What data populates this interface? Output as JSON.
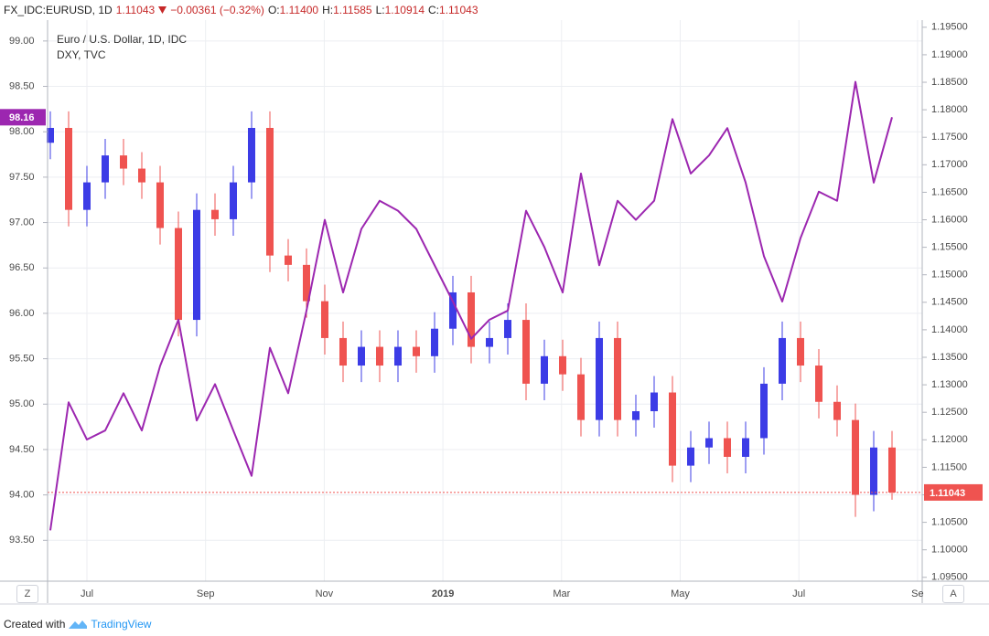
{
  "chart_data": {
    "type": "candlestick",
    "symbol": "FX_IDC:EURUSD, 1D",
    "last": "1.11043",
    "change": "−0.00361 (−0.32%)",
    "quote": [
      {
        "label": "O:",
        "value": "1.11400"
      },
      {
        "label": "H:",
        "value": "1.11585"
      },
      {
        "label": "L:",
        "value": "1.10914"
      },
      {
        "label": "C:",
        "value": "1.11043"
      }
    ],
    "xtick_labels": [
      "Jul",
      "Sep",
      "Nov",
      "2019",
      "Mar",
      "May",
      "Jul",
      "Se"
    ],
    "ylim": [
      93.05,
      99.23
    ],
    "yticks": [
      {
        "value": 93.5,
        "label": "93.50"
      },
      {
        "value": 94,
        "label": "94.00"
      },
      {
        "value": 94.5,
        "label": "94.50"
      },
      {
        "value": 95,
        "label": "95.00"
      },
      {
        "value": 95.5,
        "label": "95.50"
      },
      {
        "value": 96,
        "label": "96.00"
      },
      {
        "value": 96.5,
        "label": "96.50"
      },
      {
        "value": 97,
        "label": "97.00"
      },
      {
        "value": 97.5,
        "label": "97.50"
      },
      {
        "value": 98,
        "label": "98.00"
      },
      {
        "value": 98.5,
        "label": "98.50"
      },
      {
        "value": 99,
        "label": "99.00"
      }
    ],
    "y2lim": [
      1.0943,
      1.1963
    ],
    "y2ticks": [
      {
        "value": 1.095,
        "label": "1.09500"
      },
      {
        "value": 1.1,
        "label": "1.10000"
      },
      {
        "value": 1.105,
        "label": "1.10500"
      },
      {
        "value": 1.11,
        "label": "1.11000"
      },
      {
        "value": 1.115,
        "label": "1.11500"
      },
      {
        "value": 1.12,
        "label": "1.12000"
      },
      {
        "value": 1.125,
        "label": "1.12500"
      },
      {
        "value": 1.13,
        "label": "1.13000"
      },
      {
        "value": 1.135,
        "label": "1.13500"
      },
      {
        "value": 1.14,
        "label": "1.14000"
      },
      {
        "value": 1.145,
        "label": "1.14500"
      },
      {
        "value": 1.15,
        "label": "1.15000"
      },
      {
        "value": 1.155,
        "label": "1.15500"
      },
      {
        "value": 1.16,
        "label": "1.16000"
      },
      {
        "value": 1.165,
        "label": "1.16500"
      },
      {
        "value": 1.17,
        "label": "1.17000"
      },
      {
        "value": 1.175,
        "label": "1.17500"
      },
      {
        "value": 1.18,
        "label": "1.18000"
      },
      {
        "value": 1.185,
        "label": "1.18500"
      },
      {
        "value": 1.19,
        "label": "1.19000"
      },
      {
        "value": 1.195,
        "label": "1.19500"
      }
    ],
    "grid": true,
    "series": [
      {
        "name": "Euro / U.S. Dollar, 1D, IDC",
        "type": "candlestick",
        "axis": "y2",
        "up_color": "#3c3ce6",
        "down_color": "#ef5350",
        "last_label": "1.11043",
        "open": [
          1.174,
          1.1767,
          1.1618,
          1.1668,
          1.1717,
          1.1693,
          1.1668,
          1.1585,
          1.1418,
          1.1618,
          1.1601,
          1.1668,
          1.1767,
          1.1535,
          1.1518,
          1.1452,
          1.1385,
          1.1335,
          1.1369,
          1.1335,
          1.1369,
          1.1352,
          1.1402,
          1.1468,
          1.1369,
          1.1385,
          1.1418,
          1.1302,
          1.1352,
          1.1319,
          1.1236,
          1.1385,
          1.1236,
          1.1252,
          1.1286,
          1.1153,
          1.1186,
          1.1203,
          1.1169,
          1.1203,
          1.1302,
          1.1385,
          1.1335,
          1.1269,
          1.1236,
          1.11,
          1.1186
        ],
        "high": [
          1.1797,
          1.1797,
          1.1698,
          1.1747,
          1.1747,
          1.1723,
          1.1698,
          1.1615,
          1.1648,
          1.1648,
          1.1698,
          1.1797,
          1.1797,
          1.1565,
          1.1548,
          1.1482,
          1.1415,
          1.1399,
          1.1399,
          1.1399,
          1.1399,
          1.1432,
          1.1498,
          1.1498,
          1.1415,
          1.1448,
          1.1448,
          1.1382,
          1.1382,
          1.1349,
          1.1415,
          1.1415,
          1.1282,
          1.1316,
          1.1316,
          1.1216,
          1.1233,
          1.1233,
          1.1233,
          1.1332,
          1.1415,
          1.1415,
          1.1365,
          1.1299,
          1.1266,
          1.1216,
          1.1216
        ],
        "low": [
          1.171,
          1.1588,
          1.1588,
          1.1638,
          1.1663,
          1.1638,
          1.1555,
          1.1388,
          1.1388,
          1.1571,
          1.1571,
          1.1638,
          1.1505,
          1.1488,
          1.1422,
          1.1355,
          1.1305,
          1.1305,
          1.1305,
          1.1305,
          1.1322,
          1.1322,
          1.1372,
          1.1339,
          1.1339,
          1.1355,
          1.1272,
          1.1272,
          1.1289,
          1.1206,
          1.1206,
          1.1206,
          1.1206,
          1.1222,
          1.1123,
          1.1123,
          1.1156,
          1.1139,
          1.1139,
          1.1173,
          1.1272,
          1.1305,
          1.1239,
          1.1206,
          1.106,
          1.107,
          1.1091
        ],
        "close": [
          1.1767,
          1.1618,
          1.1668,
          1.1717,
          1.1693,
          1.1668,
          1.1585,
          1.1418,
          1.1618,
          1.1601,
          1.1668,
          1.1767,
          1.1535,
          1.1518,
          1.1452,
          1.1385,
          1.1335,
          1.1369,
          1.1335,
          1.1369,
          1.1352,
          1.1402,
          1.1468,
          1.1369,
          1.1385,
          1.1418,
          1.1302,
          1.1352,
          1.1319,
          1.1236,
          1.1385,
          1.1236,
          1.1252,
          1.1286,
          1.1153,
          1.1186,
          1.1203,
          1.1169,
          1.1203,
          1.1302,
          1.1385,
          1.1335,
          1.1269,
          1.1236,
          1.11,
          1.1186,
          1.11043
        ]
      },
      {
        "name": "DXY, TVC",
        "type": "line",
        "axis": "y",
        "color": "#9c27b0",
        "last_label": "98.16",
        "values": [
          93.61,
          95.02,
          94.61,
          94.71,
          95.12,
          94.71,
          95.42,
          95.93,
          94.82,
          95.22,
          94.71,
          94.21,
          95.62,
          95.12,
          96.03,
          97.03,
          96.23,
          96.93,
          97.24,
          97.13,
          96.93,
          96.53,
          96.13,
          95.72,
          95.93,
          96.03,
          97.13,
          96.73,
          96.23,
          97.54,
          96.53,
          97.24,
          97.03,
          97.24,
          98.14,
          97.54,
          97.74,
          98.04,
          97.44,
          96.63,
          96.13,
          96.83,
          97.34,
          97.24,
          98.55,
          97.44,
          98.16
        ]
      }
    ],
    "zoom_button": "Z",
    "auto_button": "A",
    "footer": {
      "created_with": "Created with",
      "brand": "TradingView"
    }
  }
}
